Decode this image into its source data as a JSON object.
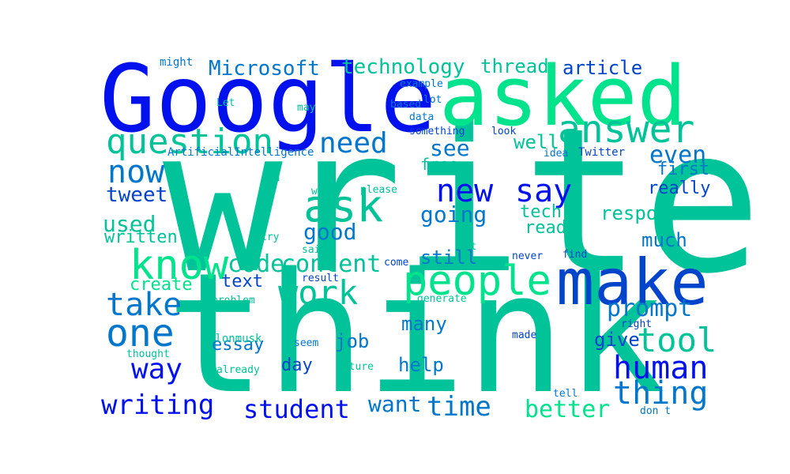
{
  "palette": {
    "teal": "#00c39a",
    "mint": "#00e38d",
    "blue": "#0011ee",
    "royal": "#0044cc",
    "steel": "#0077cc",
    "cobalt": "#0055dd"
  },
  "words": [
    {
      "text": "write",
      "color": "teal",
      "weight": 1.0
    },
    {
      "text": "think",
      "color": "teal",
      "weight": 0.98
    },
    {
      "text": "Google",
      "color": "blue",
      "weight": 0.62
    },
    {
      "text": "asked",
      "color": "mint",
      "weight": 0.56
    },
    {
      "text": "make",
      "color": "royal",
      "weight": 0.45
    },
    {
      "text": "people",
      "color": "mint",
      "weight": 0.36
    },
    {
      "text": "know",
      "color": "mint",
      "weight": 0.34
    },
    {
      "text": "ask",
      "color": "teal",
      "weight": 0.34
    },
    {
      "text": "answer",
      "color": "teal",
      "weight": 0.32
    },
    {
      "text": "one",
      "color": "steel",
      "weight": 0.3
    },
    {
      "text": "question",
      "color": "teal",
      "weight": 0.27
    },
    {
      "text": "work",
      "color": "teal",
      "weight": 0.27
    },
    {
      "text": "tool",
      "color": "teal",
      "weight": 0.27
    },
    {
      "text": "human",
      "color": "blue",
      "weight": 0.26
    },
    {
      "text": "thing",
      "color": "steel",
      "weight": 0.26
    },
    {
      "text": "take",
      "color": "steel",
      "weight": 0.25
    },
    {
      "text": "now",
      "color": "steel",
      "weight": 0.24
    },
    {
      "text": "new",
      "color": "blue",
      "weight": 0.24
    },
    {
      "text": "say",
      "color": "blue",
      "weight": 0.24
    },
    {
      "text": "need",
      "color": "steel",
      "weight": 0.23
    },
    {
      "text": "way",
      "color": "blue",
      "weight": 0.23
    },
    {
      "text": "writing",
      "color": "blue",
      "weight": 0.22
    },
    {
      "text": "student",
      "color": "blue",
      "weight": 0.21
    },
    {
      "text": "time",
      "color": "steel",
      "weight": 0.21
    },
    {
      "text": "better",
      "color": "mint",
      "weight": 0.2
    },
    {
      "text": "prompt",
      "color": "steel",
      "weight": 0.2
    },
    {
      "text": "even",
      "color": "steel",
      "weight": 0.2
    },
    {
      "text": "content",
      "color": "teal",
      "weight": 0.2
    },
    {
      "text": "code",
      "color": "teal",
      "weight": 0.2
    },
    {
      "text": "good",
      "color": "steel",
      "weight": 0.19
    },
    {
      "text": "going",
      "color": "steel",
      "weight": 0.19
    },
    {
      "text": "see",
      "color": "steel",
      "weight": 0.18
    },
    {
      "text": "want",
      "color": "steel",
      "weight": 0.17
    },
    {
      "text": "Microsoft",
      "color": "steel",
      "weight": 0.16
    },
    {
      "text": "technology",
      "color": "teal",
      "weight": 0.16
    },
    {
      "text": "thread",
      "color": "teal",
      "weight": 0.16
    },
    {
      "text": "article",
      "color": "royal",
      "weight": 0.16
    },
    {
      "text": "response",
      "color": "teal",
      "weight": 0.16
    },
    {
      "text": "used",
      "color": "teal",
      "weight": 0.16
    },
    {
      "text": "tweet",
      "color": "royal",
      "weight": 0.15
    },
    {
      "text": "still",
      "color": "steel",
      "weight": 0.15
    },
    {
      "text": "many",
      "color": "steel",
      "weight": 0.15
    },
    {
      "text": "help",
      "color": "steel",
      "weight": 0.14
    },
    {
      "text": "job",
      "color": "steel",
      "weight": 0.14
    },
    {
      "text": "give",
      "color": "royal",
      "weight": 0.14
    },
    {
      "text": "much",
      "color": "steel",
      "weight": 0.14
    },
    {
      "text": "really",
      "color": "royal",
      "weight": 0.14
    },
    {
      "text": "first",
      "color": "steel",
      "weight": 0.14
    },
    {
      "text": "well",
      "color": "teal",
      "weight": 0.14
    },
    {
      "text": "free",
      "color": "teal",
      "weight": 0.13
    },
    {
      "text": "tech",
      "color": "teal",
      "weight": 0.13
    },
    {
      "text": "read",
      "color": "teal",
      "weight": 0.13
    },
    {
      "text": "written",
      "color": "teal",
      "weight": 0.13
    },
    {
      "text": "create",
      "color": "mint",
      "weight": 0.13
    },
    {
      "text": "text",
      "color": "royal",
      "weight": 0.13
    },
    {
      "text": "essay",
      "color": "steel",
      "weight": 0.13
    },
    {
      "text": "day",
      "color": "royal",
      "weight": 0.13
    },
    {
      "text": "u",
      "color": "teal",
      "weight": 0.13
    },
    {
      "text": "ArtificialIntelligence",
      "color": "steel",
      "weight": 0.09
    },
    {
      "text": "something",
      "color": "royal",
      "weight": 0.08
    },
    {
      "text": "look",
      "color": "royal",
      "weight": 0.08
    },
    {
      "text": "Twitter",
      "color": "royal",
      "weight": 0.08
    },
    {
      "text": "idea",
      "color": "steel",
      "weight": 0.07
    },
    {
      "text": "might",
      "color": "steel",
      "weight": 0.07
    },
    {
      "text": "example",
      "color": "steel",
      "weight": 0.07
    },
    {
      "text": "Let",
      "color": "teal",
      "weight": 0.07
    },
    {
      "text": "based",
      "color": "steel",
      "weight": 0.07
    },
    {
      "text": "lot",
      "color": "steel",
      "weight": 0.07
    },
    {
      "text": "data",
      "color": "steel",
      "weight": 0.07
    },
    {
      "text": "may",
      "color": "teal",
      "weight": 0.07
    },
    {
      "text": "word",
      "color": "teal",
      "weight": 0.07
    },
    {
      "text": "please",
      "color": "teal",
      "weight": 0.07
    },
    {
      "text": "try",
      "color": "teal",
      "weight": 0.07
    },
    {
      "text": "said",
      "color": "teal",
      "weight": 0.07
    },
    {
      "text": "bot",
      "color": "teal",
      "weight": 0.07
    },
    {
      "text": "come",
      "color": "royal",
      "weight": 0.07
    },
    {
      "text": "never",
      "color": "royal",
      "weight": 0.07
    },
    {
      "text": "find",
      "color": "royal",
      "weight": 0.07
    },
    {
      "text": "result",
      "color": "royal",
      "weight": 0.07
    },
    {
      "text": "generate",
      "color": "teal",
      "weight": 0.07
    },
    {
      "text": "problem",
      "color": "teal",
      "weight": 0.07
    },
    {
      "text": "elonmusk",
      "color": "teal",
      "weight": 0.07
    },
    {
      "text": "thought",
      "color": "teal",
      "weight": 0.07
    },
    {
      "text": "seem",
      "color": "steel",
      "weight": 0.07
    },
    {
      "text": "already",
      "color": "teal",
      "weight": 0.07
    },
    {
      "text": "future",
      "color": "teal",
      "weight": 0.07
    },
    {
      "text": "made",
      "color": "royal",
      "weight": 0.07
    },
    {
      "text": "right",
      "color": "royal",
      "weight": 0.07
    },
    {
      "text": "tell",
      "color": "steel",
      "weight": 0.07
    },
    {
      "text": "don t",
      "color": "steel",
      "weight": 0.07
    }
  ]
}
